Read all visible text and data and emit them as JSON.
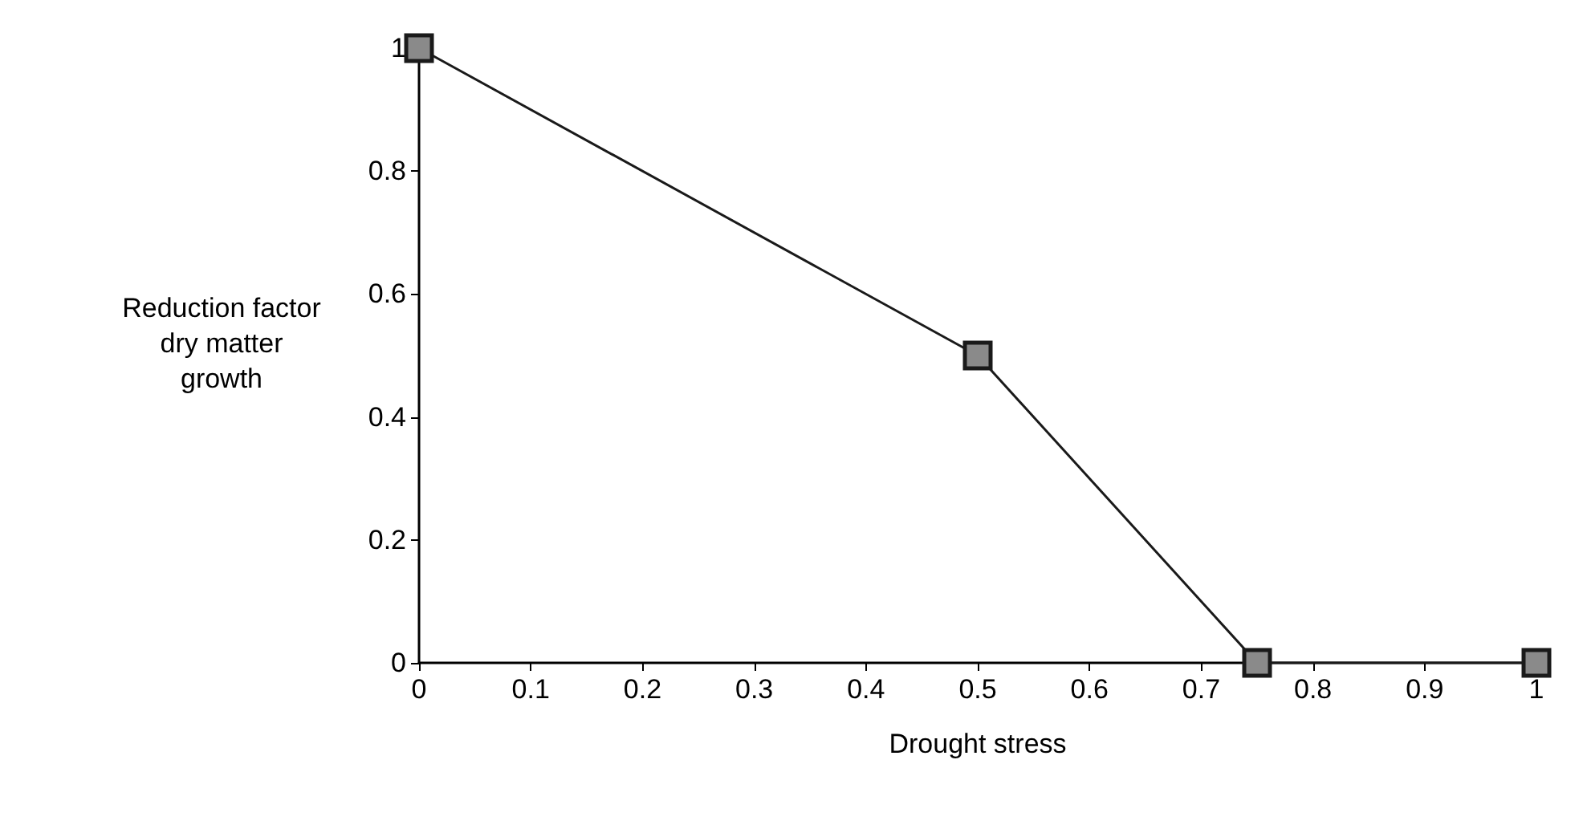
{
  "chart_data": {
    "type": "line",
    "xlabel": "Drought stress",
    "ylabel": "Reduction factor\ndry matter\ngrowth",
    "x": [
      0,
      0.5,
      0.75,
      1
    ],
    "series": [
      {
        "color": "#1a1a1a",
        "values": [
          1,
          0.5,
          0,
          0
        ]
      }
    ],
    "xlim": [
      0,
      1
    ],
    "xticks": [
      0,
      0.1,
      0.2,
      0.3,
      0.4,
      0.5,
      0.6,
      0.7,
      0.8,
      0.9,
      1
    ],
    "ylim": [
      0,
      1
    ],
    "yticks": [
      0,
      0.2,
      0.4,
      0.6,
      0.8,
      1
    ],
    "grid": false,
    "marker": "square",
    "line_style": "solid"
  }
}
